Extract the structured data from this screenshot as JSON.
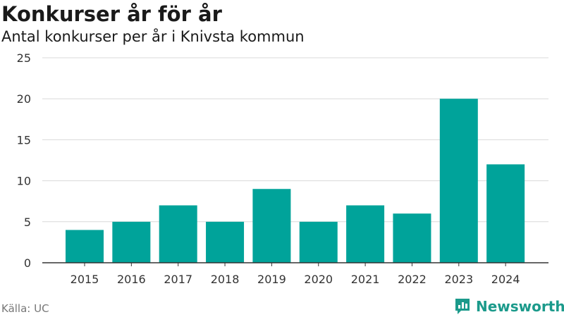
{
  "header": {
    "title": "Konkurser år för år",
    "subtitle": "Antal konkurser per år i Knivsta kommun"
  },
  "footer": {
    "source": "Källa: UC",
    "brand": "Newsworthy"
  },
  "colors": {
    "bar": "#00A39A",
    "grid": "#D9D9D9",
    "axis": "#333333",
    "brand": "#1B9A8B"
  },
  "icons": {
    "brand_logo": "newsworthy-logo-icon"
  },
  "chart_data": {
    "type": "bar",
    "title": "Konkurser år för år",
    "subtitle": "Antal konkurser per år i Knivsta kommun",
    "xlabel": "",
    "ylabel": "",
    "categories": [
      "2015",
      "2016",
      "2017",
      "2018",
      "2019",
      "2020",
      "2021",
      "2022",
      "2023",
      "2024"
    ],
    "series": [
      {
        "values": [
          4,
          5,
          7,
          5,
          9,
          5,
          7,
          6,
          20,
          12
        ]
      }
    ],
    "ylim": [
      0,
      25
    ],
    "yticks": [
      0,
      5,
      10,
      15,
      20,
      25
    ],
    "grid": true,
    "legend": "none"
  }
}
